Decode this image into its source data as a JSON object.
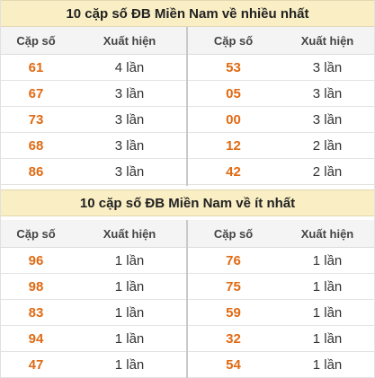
{
  "sections": [
    {
      "title": "10 cặp số ĐB Miền Nam về nhiều nhất",
      "headers": [
        "Cặp số",
        "Xuất hiện",
        "Cặp số",
        "Xuất hiện"
      ],
      "rows": [
        {
          "left_num": "61",
          "left_count": "4 lần",
          "right_num": "53",
          "right_count": "3 lần"
        },
        {
          "left_num": "67",
          "left_count": "3 lần",
          "right_num": "05",
          "right_count": "3 lần"
        },
        {
          "left_num": "73",
          "left_count": "3 lần",
          "right_num": "00",
          "right_count": "3 lần"
        },
        {
          "left_num": "68",
          "left_count": "3 lần",
          "right_num": "12",
          "right_count": "2 lần"
        },
        {
          "left_num": "86",
          "left_count": "3 lần",
          "right_num": "42",
          "right_count": "2 lần"
        }
      ]
    },
    {
      "title": "10 cặp số ĐB Miền Nam về ít nhất",
      "headers": [
        "Cặp số",
        "Xuất hiện",
        "Cặp số",
        "Xuất hiện"
      ],
      "rows": [
        {
          "left_num": "96",
          "left_count": "1 lần",
          "right_num": "76",
          "right_count": "1 lần"
        },
        {
          "left_num": "98",
          "left_count": "1 lần",
          "right_num": "75",
          "right_count": "1 lần"
        },
        {
          "left_num": "83",
          "left_count": "1 lần",
          "right_num": "59",
          "right_count": "1 lần"
        },
        {
          "left_num": "94",
          "left_count": "1 lần",
          "right_num": "32",
          "right_count": "1 lần"
        },
        {
          "left_num": "47",
          "left_count": "1 lần",
          "right_num": "54",
          "right_count": "1 lần"
        }
      ]
    }
  ],
  "colors": {
    "title_bg": "#f9eec4",
    "header_bg": "#f4f4f4",
    "number": "#e06a13",
    "divider": "#c9c9c9"
  }
}
